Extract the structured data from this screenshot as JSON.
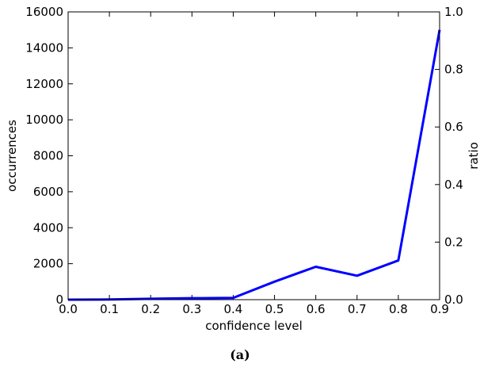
{
  "caption": "(a)",
  "chart_data": {
    "type": "line",
    "xlabel": "confidence level",
    "ylabel": "occurrences",
    "y2label": "ratio",
    "xlim": [
      0.0,
      0.9
    ],
    "ylim": [
      0,
      16000
    ],
    "y2lim": [
      0.0,
      1.0
    ],
    "x_ticks": [
      "0.0",
      "0.1",
      "0.2",
      "0.3",
      "0.4",
      "0.5",
      "0.6",
      "0.7",
      "0.8",
      "0.9"
    ],
    "y_ticks": [
      "0",
      "2000",
      "4000",
      "6000",
      "8000",
      "10000",
      "12000",
      "14000",
      "16000"
    ],
    "y2_ticks": [
      "0.0",
      "0.2",
      "0.4",
      "0.6",
      "0.8",
      "1.0"
    ],
    "grid": false,
    "series": [
      {
        "color": "#0000ff",
        "x": [
          0.0,
          0.1,
          0.2,
          0.3,
          0.4,
          0.5,
          0.6,
          0.7,
          0.8,
          0.9
        ],
        "values": [
          0,
          10,
          50,
          80,
          100,
          1000,
          1830,
          1330,
          2180,
          15000
        ]
      }
    ]
  }
}
